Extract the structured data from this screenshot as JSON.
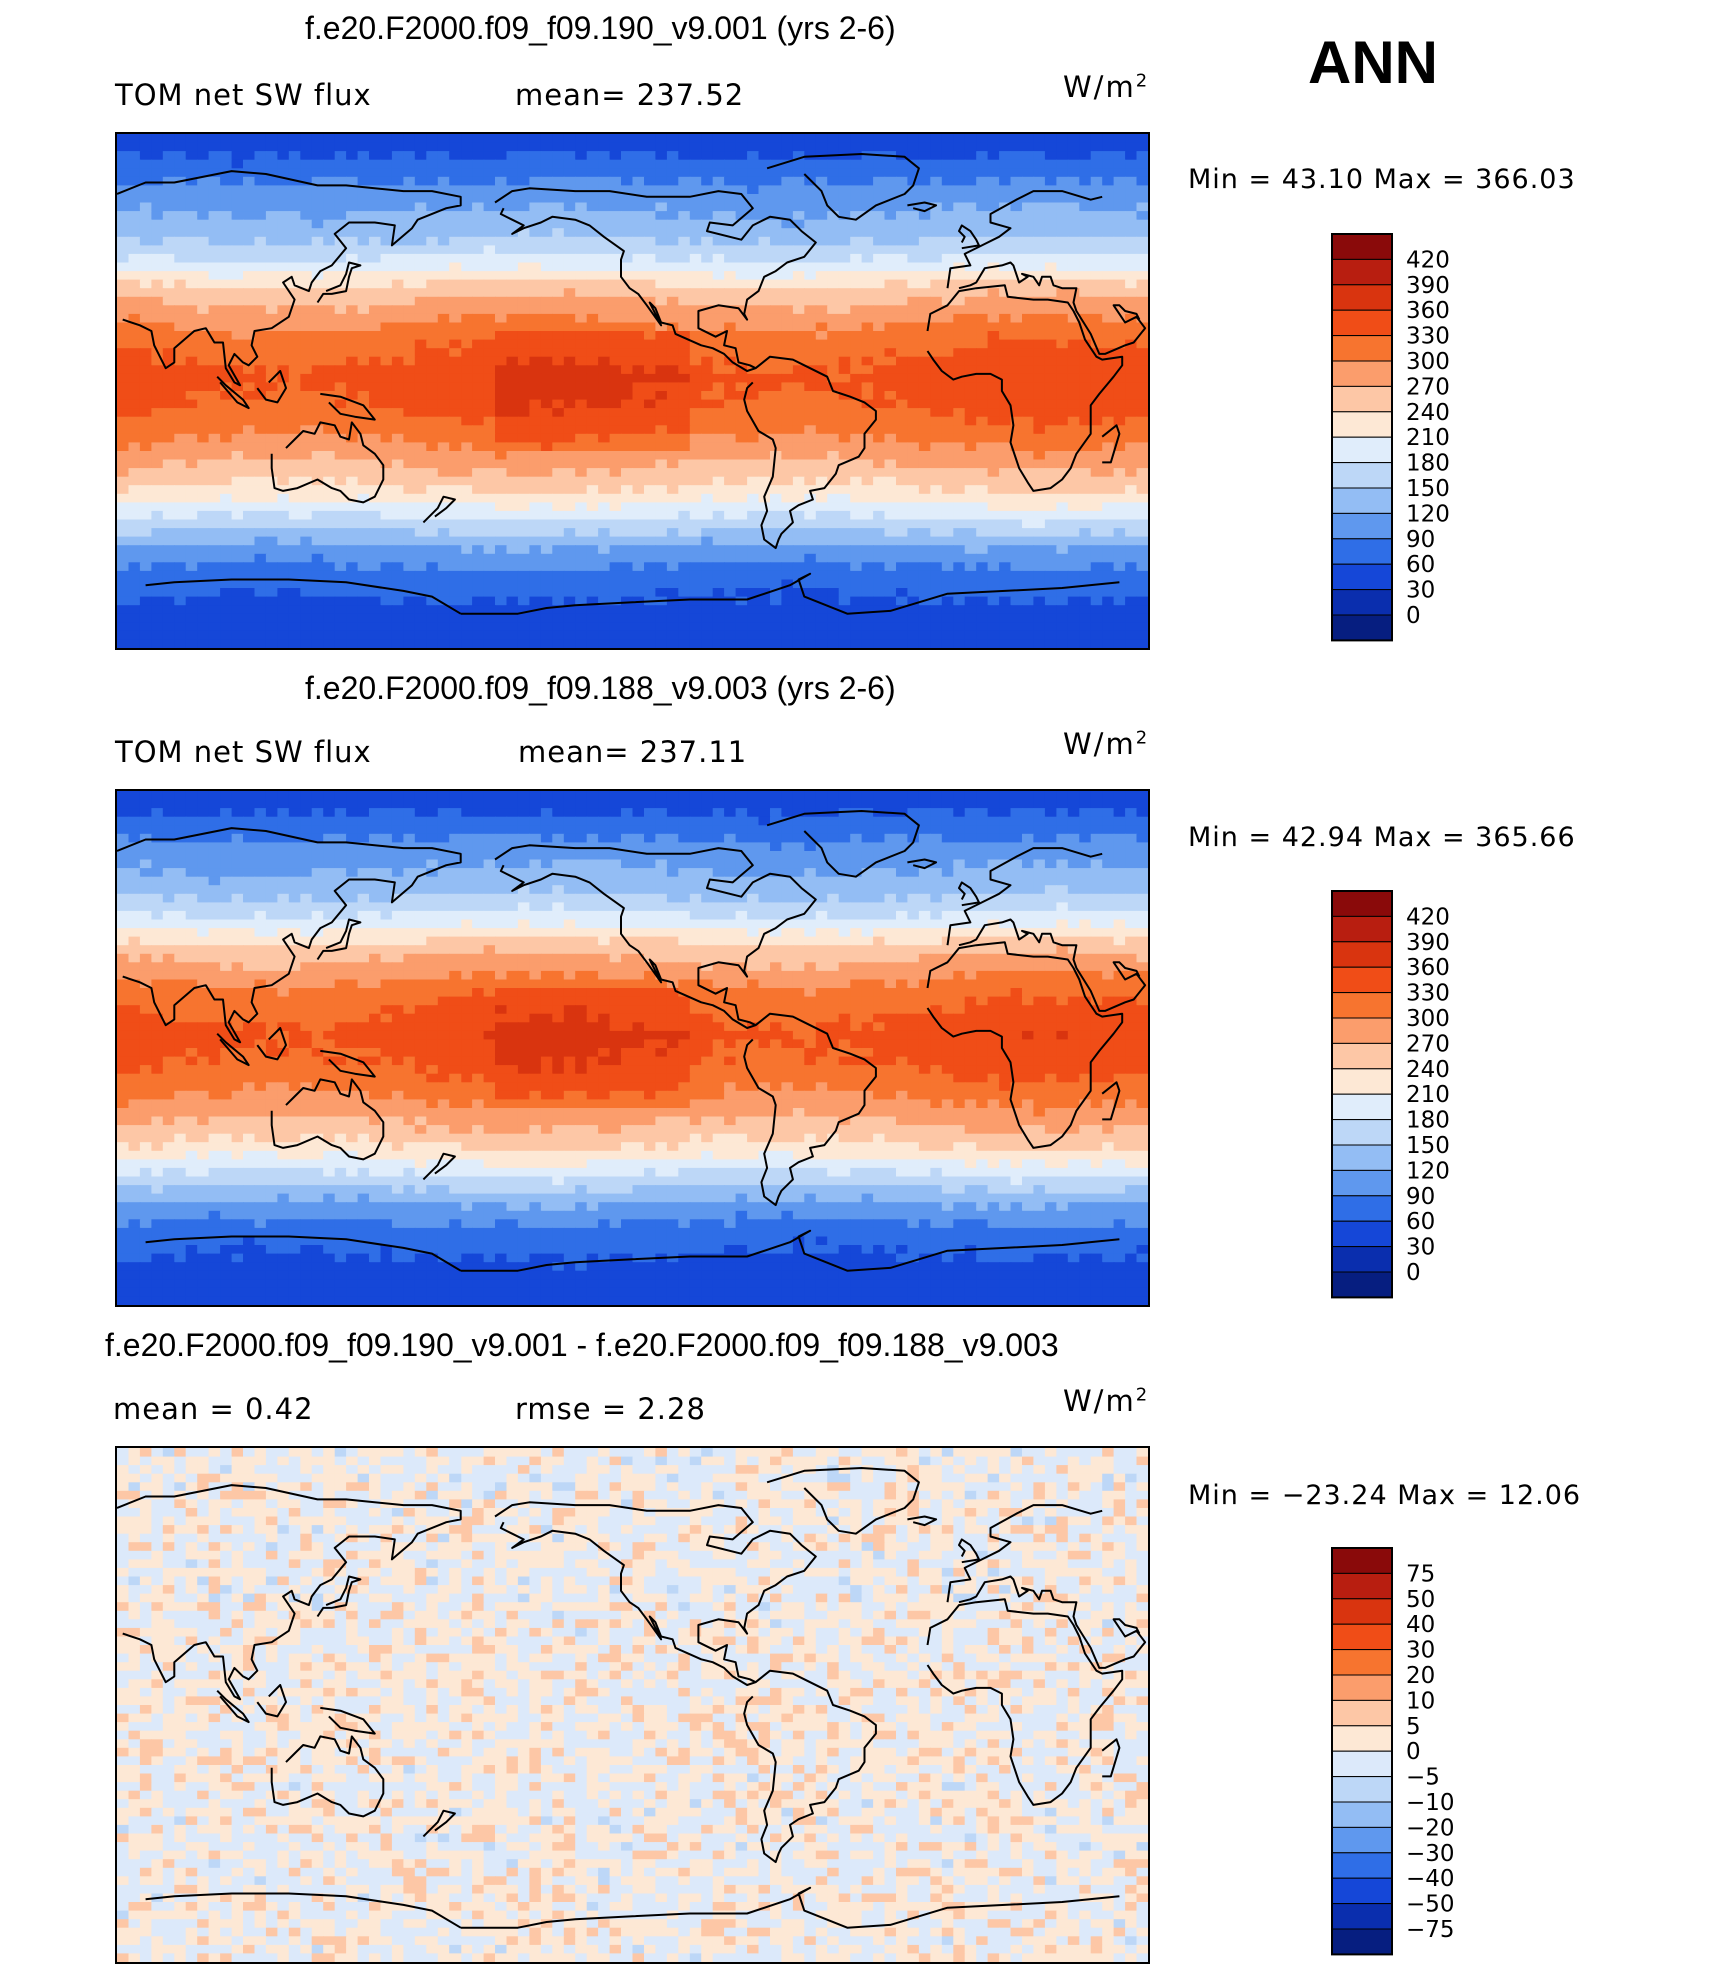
{
  "season": "ANN",
  "panels": [
    {
      "title": "f.e20.F2000.f09_f09.190_v9.001 (yrs 2-6)",
      "variable": "TOM net SW flux",
      "stat1": "mean= 237.52",
      "stat2": "",
      "units_base": "W/m",
      "units_exp": "2",
      "minmax": "Min =   43.10 Max = 366.03",
      "kind": "field",
      "colorbar_levels": [
        "420",
        "390",
        "360",
        "330",
        "300",
        "270",
        "240",
        "210",
        "180",
        "150",
        "120",
        "90",
        "60",
        "30",
        "0"
      ]
    },
    {
      "title": "f.e20.F2000.f09_f09.188_v9.003 (yrs 2-6)",
      "variable": "TOM net SW flux",
      "stat1": "mean= 237.11",
      "stat2": "",
      "units_base": "W/m",
      "units_exp": "2",
      "minmax": "Min =   42.94 Max = 365.66",
      "kind": "field",
      "colorbar_levels": [
        "420",
        "390",
        "360",
        "330",
        "300",
        "270",
        "240",
        "210",
        "180",
        "150",
        "120",
        "90",
        "60",
        "30",
        "0"
      ]
    },
    {
      "title": "f.e20.F2000.f09_f09.190_v9.001 - f.e20.F2000.f09_f09.188_v9.003",
      "variable": "mean =    0.42",
      "stat1": "rmse =    2.28",
      "stat2": "",
      "units_base": "W/m",
      "units_exp": "2",
      "minmax": "Min = −23.24 Max =   12.06",
      "kind": "diff",
      "colorbar_levels": [
        "75",
        "50",
        "40",
        "30",
        "20",
        "10",
        "5",
        "0",
        "−5",
        "−10",
        "−20",
        "−30",
        "−40",
        "−50",
        "−75"
      ]
    }
  ],
  "colors": {
    "field_ramp": [
      "#8a0a0a",
      "#b81e10",
      "#d9340f",
      "#f04d17",
      "#f7742f",
      "#fb9d6c",
      "#fdc7a6",
      "#fde8d5",
      "#e0edfb",
      "#bdd7f7",
      "#93bdf4",
      "#5f98ee",
      "#2f6ee7",
      "#1547d8",
      "#0a2eae",
      "#061e80"
    ],
    "diff_ramp": [
      "#8a0a0a",
      "#b81e10",
      "#d9340f",
      "#f04d17",
      "#f7742f",
      "#fb9d6c",
      "#fdc7a6",
      "#fde8d5",
      "#dce9fa",
      "#bdd7f7",
      "#93bdf4",
      "#5f98ee",
      "#2f6ee7",
      "#1547d8",
      "#0a2eae",
      "#061e80"
    ]
  },
  "chart_data": [
    {
      "type": "heatmap",
      "title": "f.e20.F2000.f09_f09.190_v9.001 (yrs 2-6)",
      "variable": "TOM net SW flux",
      "units": "W/m2",
      "mean": 237.52,
      "min": 43.1,
      "max": 366.03,
      "contour_levels": [
        0,
        30,
        60,
        90,
        120,
        150,
        180,
        210,
        240,
        270,
        300,
        330,
        360,
        390,
        420
      ],
      "lat_band_values": [
        {
          "lat": 85,
          "value": 50
        },
        {
          "lat": 70,
          "value": 100
        },
        {
          "lat": 55,
          "value": 140
        },
        {
          "lat": 45,
          "value": 190
        },
        {
          "lat": 35,
          "value": 255
        },
        {
          "lat": 20,
          "value": 315
        },
        {
          "lat": 5,
          "value": 345
        },
        {
          "lat": -5,
          "value": 335
        },
        {
          "lat": -15,
          "value": 310
        },
        {
          "lat": -25,
          "value": 275
        },
        {
          "lat": -35,
          "value": 235
        },
        {
          "lat": -45,
          "value": 175
        },
        {
          "lat": -55,
          "value": 115
        },
        {
          "lat": -65,
          "value": 75
        },
        {
          "lat": -80,
          "value": 45
        }
      ]
    },
    {
      "type": "heatmap",
      "title": "f.e20.F2000.f09_f09.188_v9.003 (yrs 2-6)",
      "variable": "TOM net SW flux",
      "units": "W/m2",
      "mean": 237.11,
      "min": 42.94,
      "max": 365.66,
      "contour_levels": [
        0,
        30,
        60,
        90,
        120,
        150,
        180,
        210,
        240,
        270,
        300,
        330,
        360,
        390,
        420
      ],
      "lat_band_values": [
        {
          "lat": 85,
          "value": 50
        },
        {
          "lat": 70,
          "value": 100
        },
        {
          "lat": 55,
          "value": 140
        },
        {
          "lat": 45,
          "value": 190
        },
        {
          "lat": 35,
          "value": 255
        },
        {
          "lat": 20,
          "value": 315
        },
        {
          "lat": 5,
          "value": 345
        },
        {
          "lat": -5,
          "value": 335
        },
        {
          "lat": -15,
          "value": 310
        },
        {
          "lat": -25,
          "value": 275
        },
        {
          "lat": -35,
          "value": 235
        },
        {
          "lat": -45,
          "value": 175
        },
        {
          "lat": -55,
          "value": 115
        },
        {
          "lat": -65,
          "value": 75
        },
        {
          "lat": -80,
          "value": 45
        }
      ]
    },
    {
      "type": "heatmap",
      "title": "f.e20.F2000.f09_f09.190_v9.001 - f.e20.F2000.f09_f09.188_v9.003",
      "units": "W/m2",
      "mean": 0.42,
      "rmse": 2.28,
      "min": -23.24,
      "max": 12.06,
      "contour_levels": [
        -75,
        -50,
        -40,
        -30,
        -20,
        -10,
        -5,
        0,
        5,
        10,
        20,
        30,
        40,
        50,
        75
      ],
      "lat_band_values": [
        {
          "lat": 80,
          "value": -2
        },
        {
          "lat": 60,
          "value": 1
        },
        {
          "lat": 40,
          "value": -1
        },
        {
          "lat": 20,
          "value": 2
        },
        {
          "lat": 0,
          "value": 2
        },
        {
          "lat": -20,
          "value": 2
        },
        {
          "lat": -40,
          "value": -1
        },
        {
          "lat": -60,
          "value": 1
        },
        {
          "lat": -80,
          "value": 1
        }
      ]
    }
  ]
}
